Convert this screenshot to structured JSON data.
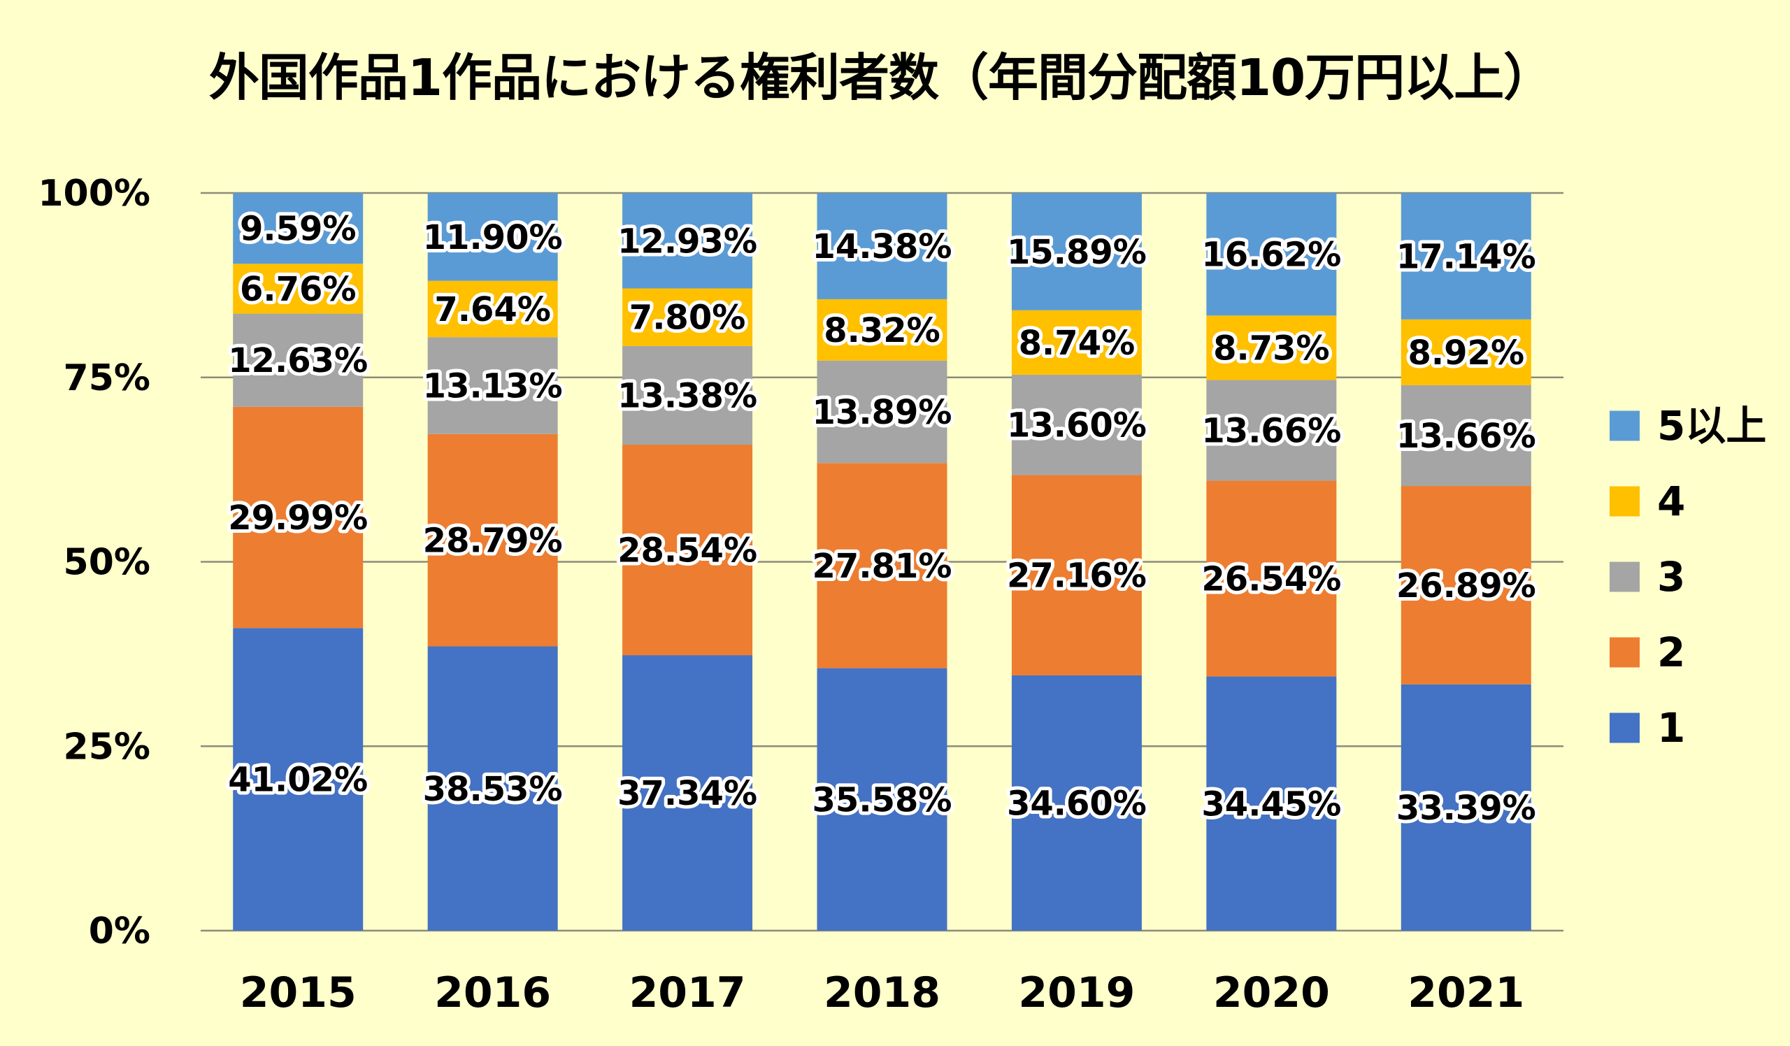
{
  "chart_data": {
    "type": "bar",
    "stacked": true,
    "percent_stacked": true,
    "title": "外国作品1作品における権利者数（年間分配額10万円以上）",
    "xlabel": "",
    "ylabel": "",
    "ylim": [
      0,
      100
    ],
    "y_ticks": [
      "0%",
      "25%",
      "50%",
      "75%",
      "100%"
    ],
    "y_tick_values": [
      0,
      25,
      50,
      75,
      100
    ],
    "grid": true,
    "legend_position": "right",
    "categories": [
      "2015",
      "2016",
      "2017",
      "2018",
      "2019",
      "2020",
      "2021"
    ],
    "series": [
      {
        "name": "1",
        "color": "#4472C4",
        "values": [
          41.02,
          38.53,
          37.34,
          35.58,
          34.6,
          34.45,
          33.39
        ],
        "labels": [
          "41.02%",
          "38.53%",
          "37.34%",
          "35.58%",
          "34.60%",
          "34.45%",
          "33.39%"
        ]
      },
      {
        "name": "2",
        "color": "#ED7D31",
        "values": [
          29.99,
          28.79,
          28.54,
          27.81,
          27.16,
          26.54,
          26.89
        ],
        "labels": [
          "29.99%",
          "28.79%",
          "28.54%",
          "27.81%",
          "27.16%",
          "26.54%",
          "26.89%"
        ]
      },
      {
        "name": "3",
        "color": "#A5A5A5",
        "values": [
          12.63,
          13.13,
          13.38,
          13.89,
          13.6,
          13.66,
          13.66
        ],
        "labels": [
          "12.63%",
          "13.13%",
          "13.38%",
          "13.89%",
          "13.60%",
          "13.66%",
          "13.66%"
        ]
      },
      {
        "name": "4",
        "color": "#FFC000",
        "values": [
          6.76,
          7.64,
          7.8,
          8.32,
          8.74,
          8.73,
          8.92
        ],
        "labels": [
          "6.76%",
          "7.64%",
          "7.80%",
          "8.32%",
          "8.74%",
          "8.73%",
          "8.92%"
        ]
      },
      {
        "name": "5以上",
        "color": "#5B9BD5",
        "values": [
          9.59,
          11.9,
          12.93,
          14.38,
          15.89,
          16.62,
          17.14
        ],
        "labels": [
          "9.59%",
          "11.90%",
          "12.93%",
          "14.38%",
          "15.89%",
          "16.62%",
          "17.14%"
        ]
      }
    ],
    "legend_order": [
      "5以上",
      "4",
      "3",
      "2",
      "1"
    ]
  },
  "colors": {
    "background": "#FFFFCC",
    "gridline": "#8C8C7A",
    "text": "#000000"
  }
}
